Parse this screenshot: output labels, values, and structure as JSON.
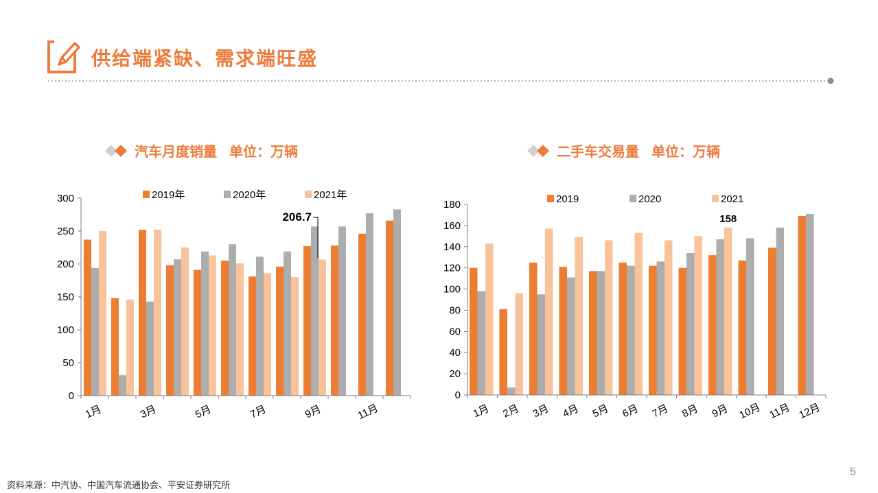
{
  "slide": {
    "title": "供给端紧缺、需求端旺盛",
    "source": "资料来源：中汽协、中国汽车流通协会、平安证券研究所",
    "page_number": "5"
  },
  "colors": {
    "accent": "#EE7A3C",
    "series_2019": "#ED7D31",
    "series_2020": "#ADADAD",
    "series_2021": "#F8C29B",
    "diamond_gray": "#D0D0D0"
  },
  "chart_left_heading": {
    "main": "汽车月度销量",
    "unit": "单位：万辆"
  },
  "chart_right_heading": {
    "main": "二手车交易量",
    "unit": "单位：万辆"
  },
  "chart_data": [
    {
      "type": "bar",
      "categories": [
        "1月",
        "2月",
        "3月",
        "4月",
        "5月",
        "6月",
        "7月",
        "8月",
        "9月",
        "10月",
        "11月",
        "12月"
      ],
      "category_tick_labels": [
        "1月",
        "",
        "3月",
        "",
        "5月",
        "",
        "7月",
        "",
        "9月",
        "",
        "11月",
        ""
      ],
      "series": [
        {
          "name": "2019年",
          "values": [
            237,
            148,
            252,
            198,
            191,
            205,
            181,
            196,
            227,
            228,
            246,
            266
          ]
        },
        {
          "name": "2020年",
          "values": [
            194,
            31,
            143,
            207,
            219,
            230,
            211,
            219,
            257,
            257,
            277,
            283
          ]
        },
        {
          "name": "2021年",
          "values": [
            250,
            146,
            252,
            225,
            213,
            201,
            186,
            180,
            206.7,
            null,
            null,
            null
          ]
        }
      ],
      "ylim": [
        0,
        300
      ],
      "yticks": [
        0,
        50,
        100,
        150,
        200,
        250,
        300
      ],
      "legend_position": "top",
      "annotation": {
        "text": "206.7",
        "series": "2021年",
        "category": "9月"
      }
    },
    {
      "type": "bar",
      "categories": [
        "1月",
        "2月",
        "3月",
        "4月",
        "5月",
        "6月",
        "7月",
        "8月",
        "9月",
        "10月",
        "11月",
        "12月"
      ],
      "category_tick_labels": [
        "1月",
        "2月",
        "3月",
        "4月",
        "5月",
        "6月",
        "7月",
        "8月",
        "9月",
        "10月",
        "11月",
        "12月"
      ],
      "series": [
        {
          "name": "2019",
          "values": [
            120,
            81,
            125,
            121,
            117,
            125,
            122,
            120,
            132,
            127,
            139,
            169
          ]
        },
        {
          "name": "2020",
          "values": [
            98,
            7,
            95,
            111,
            117,
            122,
            126,
            134,
            147,
            148,
            158,
            171
          ]
        },
        {
          "name": "2021",
          "values": [
            143,
            96,
            157,
            149,
            146,
            153,
            146,
            150,
            158,
            null,
            null,
            null
          ]
        }
      ],
      "ylim": [
        0,
        180
      ],
      "yticks": [
        0,
        20,
        40,
        60,
        80,
        100,
        120,
        140,
        160,
        180
      ],
      "legend_position": "top",
      "annotation": {
        "text": "158",
        "series": "2021",
        "category": "9月"
      }
    }
  ]
}
